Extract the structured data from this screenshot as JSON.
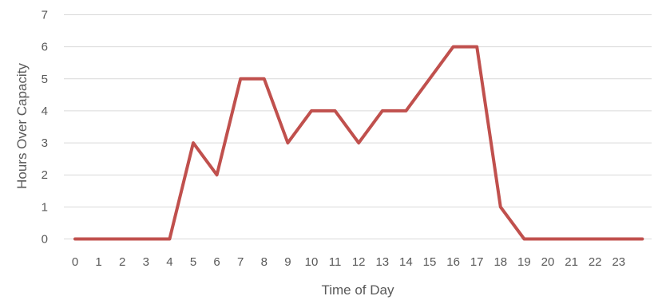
{
  "chart_data": {
    "type": "line",
    "title": "",
    "xlabel": "Time of Day",
    "ylabel": "Hours Over Capacity",
    "ylim": [
      0,
      7
    ],
    "yticks": [
      0,
      1,
      2,
      3,
      4,
      5,
      6,
      7
    ],
    "categories": [
      "0",
      "1",
      "2",
      "3",
      "4",
      "5",
      "6",
      "7",
      "8",
      "9",
      "10",
      "11",
      "12",
      "13",
      "14",
      "15",
      "16",
      "17",
      "18",
      "19",
      "20",
      "21",
      "22",
      "23"
    ],
    "x": [
      0,
      1,
      2,
      3,
      4,
      5,
      6,
      7,
      8,
      9,
      10,
      11,
      12,
      13,
      14,
      15,
      16,
      17,
      18,
      19,
      20,
      21,
      22,
      23,
      24
    ],
    "series": [
      {
        "color": "#c0504d",
        "values": [
          0,
          0,
          0,
          0,
          0,
          3,
          2,
          5,
          5,
          3,
          4,
          4,
          3,
          4,
          4,
          5,
          6,
          6,
          1,
          0,
          0,
          0,
          0,
          0,
          0
        ]
      }
    ],
    "grid": true,
    "legend": "none"
  }
}
